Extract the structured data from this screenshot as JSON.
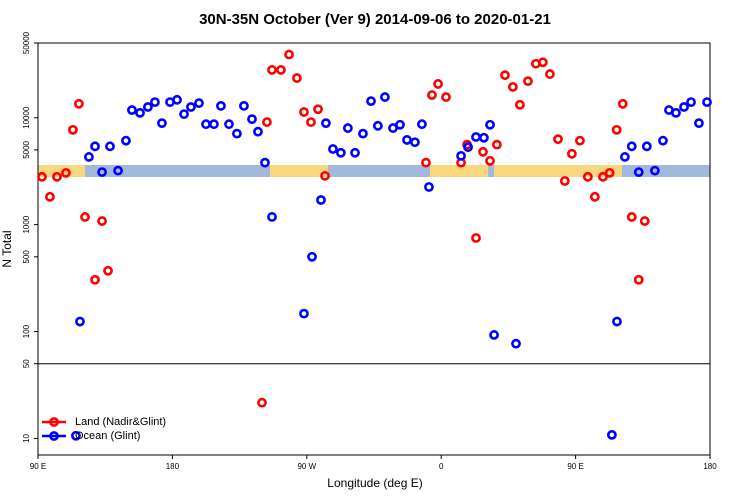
{
  "chart_data": {
    "type": "scatter",
    "title": "30N-35N October (Ver 9)   2014-09-06 to 2020-01-21",
    "x_label": "Longitude (deg E)",
    "y_label": "N Total",
    "log_y": true,
    "legend": "bottom-left",
    "hline": 50,
    "xlim": [
      90,
      540
    ],
    "xticks": [
      {
        "value": 90,
        "label": "90 E"
      },
      180,
      {
        "value": 270,
        "label": "90 W"
      },
      {
        "value": 360,
        "label": "0"
      },
      {
        "value": 450,
        "label": "90 E"
      },
      {
        "value": 540,
        "label": "180"
      }
    ],
    "ylim": [
      7,
      50000
    ],
    "yticks": [
      10,
      50,
      100,
      500,
      1000,
      5000,
      10000,
      50000
    ],
    "series": [
      {
        "name": "Land (Nadir&Glint)",
        "color": "#ff0000",
        "x": [
          92.7,
          98,
          102.7,
          108.7,
          113.4,
          117.4,
          121.5,
          128.2,
          132.9,
          136.9,
          240,
          243.3,
          246.7,
          252.7,
          258.1,
          263.4,
          268.1,
          272.8,
          277.5,
          282.2,
          349.8,
          353.8,
          357.9,
          363.2,
          373.3,
          377.3,
          383.3,
          388,
          392.7,
          397.3,
          402.7,
          408,
          412.7,
          418.1,
          423.4,
          428.1,
          432.8,
          438.2,
          442.8,
          447.5,
          452.9,
          458.2,
          462.9,
          468.3,
          472.8,
          477.5,
          481.6,
          487.6,
          492.3,
          496.3
        ],
        "values": [
          2800,
          1820,
          2800,
          3050,
          7700,
          13500,
          1180,
          305,
          1080,
          370,
          21.6,
          9100,
          28000,
          28000,
          39000,
          23500,
          11300,
          9100,
          12000,
          2860,
          3800,
          16300,
          20700,
          15600,
          3800,
          5600,
          750,
          4800,
          3950,
          5600,
          25000,
          19400,
          13200,
          22000,
          32000,
          33000,
          25600,
          6300,
          2560,
          4600,
          6100,
          2800,
          1820,
          2800,
          3050,
          7700,
          13500,
          1180,
          305,
          1080
        ]
      },
      {
        "name": "Ocean (Glint)",
        "color": "#0000ff",
        "x": [
          115.4,
          118.1,
          124.1,
          128.2,
          132.9,
          138.2,
          143.6,
          148.9,
          152.9,
          158.3,
          163.6,
          168.3,
          173,
          178.4,
          183.1,
          187.8,
          192.4,
          197.8,
          202.5,
          207.8,
          212.5,
          217.9,
          223.2,
          227.9,
          233.3,
          237.3,
          242,
          246.7,
          268.1,
          273.5,
          279.5,
          282.8,
          287.5,
          292.8,
          297.5,
          302.3,
          307.6,
          313,
          317.6,
          322.3,
          327.7,
          332.4,
          337.1,
          342.4,
          347.1,
          351.8,
          373.3,
          378,
          383.3,
          388.6,
          392.7,
          395.4,
          410.1,
          474.3,
          477.7,
          483,
          487.6,
          492.3,
          497.7,
          503.1,
          508.5,
          512.5,
          517.2,
          522.6,
          527.3,
          532.6,
          538
        ],
        "values": [
          10.6,
          124,
          4300,
          5400,
          3100,
          5400,
          3200,
          6100,
          11800,
          11100,
          12600,
          14000,
          8900,
          14000,
          14700,
          10800,
          12600,
          13700,
          8700,
          8700,
          12900,
          8700,
          7100,
          12900,
          9700,
          7400,
          3800,
          1180,
          147,
          500,
          1700,
          8900,
          5100,
          4700,
          8000,
          4700,
          7100,
          14300,
          8400,
          15600,
          8000,
          8600,
          6200,
          5900,
          8700,
          2250,
          4400,
          5300,
          6600,
          6500,
          8600,
          93,
          77,
          10.8,
          124,
          4300,
          5400,
          3100,
          5400,
          3200,
          6100,
          11800,
          11100,
          12600,
          14000,
          8900,
          14000
        ]
      }
    ]
  }
}
